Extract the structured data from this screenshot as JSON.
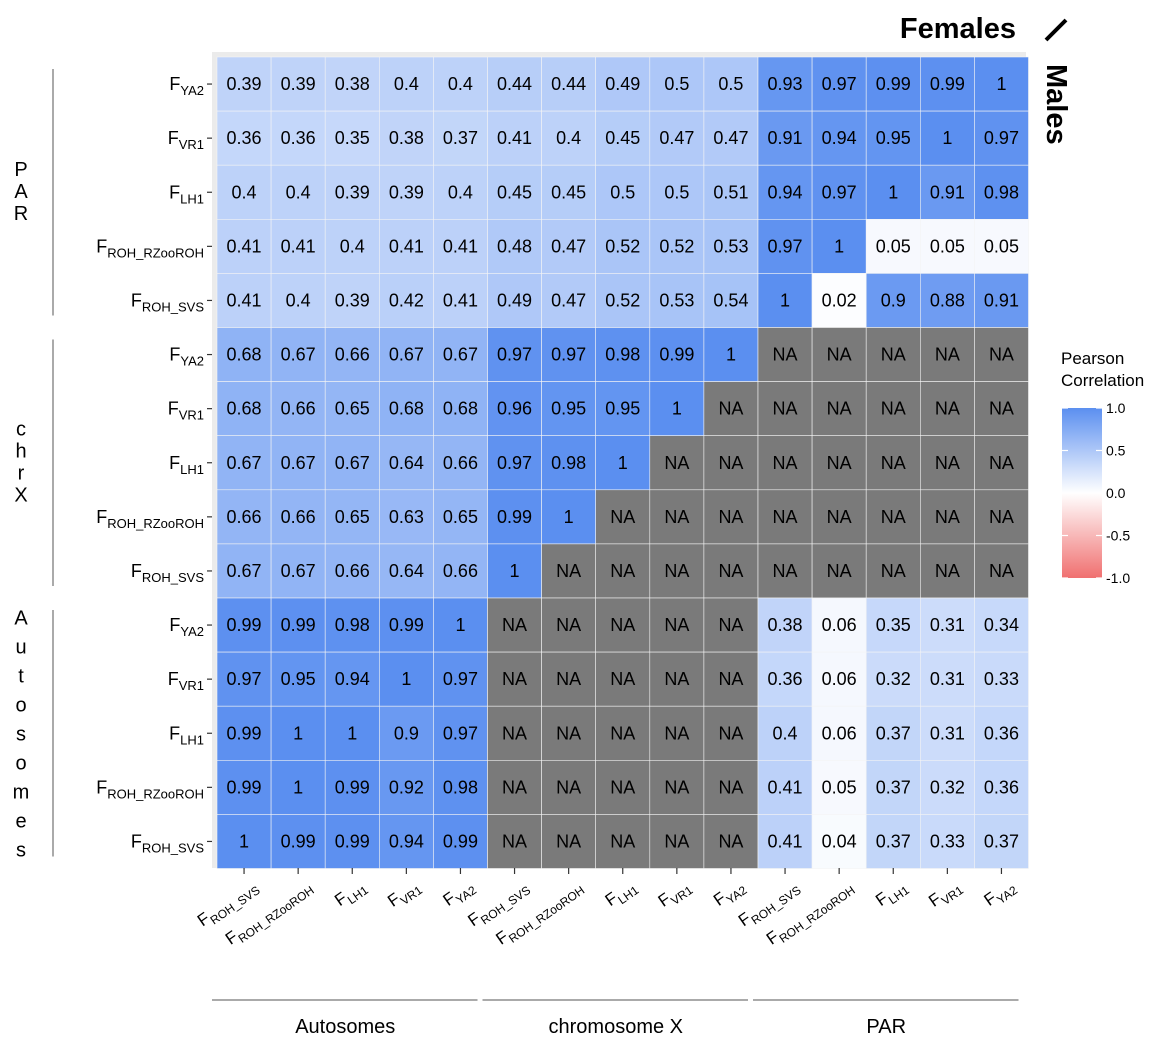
{
  "chart_data": {
    "type": "heatmap",
    "corner_label_top": "Females",
    "corner_label_right": "Males",
    "legend": {
      "title_line1": "Pearson",
      "title_line2": "Correlation",
      "ticks": [
        "1.0",
        "0.5",
        "0.0",
        "-0.5",
        "-1.0"
      ],
      "tick_values": [
        1.0,
        0.5,
        0.0,
        -0.5,
        -1.0
      ],
      "colors": {
        "high": "#5b8ff0",
        "mid": "#ffffff",
        "low": "#f07070",
        "na": "#7a7a7a"
      }
    },
    "x_groups": [
      "Autosomes",
      "chromosome X",
      "PAR"
    ],
    "y_groups": [
      "PAR",
      "chrX",
      "Autosomes"
    ],
    "x_labels": [
      {
        "main": "F",
        "sub": "ROH_SVS"
      },
      {
        "main": "F",
        "sub": "ROH_RZooROH"
      },
      {
        "main": "F",
        "sub": "LH1"
      },
      {
        "main": "F",
        "sub": "VR1"
      },
      {
        "main": "F",
        "sub": "YA2"
      },
      {
        "main": "F",
        "sub": "ROH_SVS"
      },
      {
        "main": "F",
        "sub": "ROH_RZooROH"
      },
      {
        "main": "F",
        "sub": "LH1"
      },
      {
        "main": "F",
        "sub": "VR1"
      },
      {
        "main": "F",
        "sub": "YA2"
      },
      {
        "main": "F",
        "sub": "ROH_SVS"
      },
      {
        "main": "F",
        "sub": "ROH_RZooROH"
      },
      {
        "main": "F",
        "sub": "LH1"
      },
      {
        "main": "F",
        "sub": "VR1"
      },
      {
        "main": "F",
        "sub": "YA2"
      }
    ],
    "y_labels": [
      {
        "main": "F",
        "sub": "YA2"
      },
      {
        "main": "F",
        "sub": "VR1"
      },
      {
        "main": "F",
        "sub": "LH1"
      },
      {
        "main": "F",
        "sub": "ROH_RZooROH"
      },
      {
        "main": "F",
        "sub": "ROH_SVS"
      },
      {
        "main": "F",
        "sub": "YA2"
      },
      {
        "main": "F",
        "sub": "VR1"
      },
      {
        "main": "F",
        "sub": "LH1"
      },
      {
        "main": "F",
        "sub": "ROH_RZooROH"
      },
      {
        "main": "F",
        "sub": "ROH_SVS"
      },
      {
        "main": "F",
        "sub": "YA2"
      },
      {
        "main": "F",
        "sub": "VR1"
      },
      {
        "main": "F",
        "sub": "LH1"
      },
      {
        "main": "F",
        "sub": "ROH_RZooROH"
      },
      {
        "main": "F",
        "sub": "ROH_SVS"
      }
    ],
    "values": [
      [
        "0.39",
        "0.39",
        "0.38",
        "0.4",
        "0.4",
        "0.44",
        "0.44",
        "0.49",
        "0.5",
        "0.5",
        "0.93",
        "0.97",
        "0.99",
        "0.99",
        "1"
      ],
      [
        "0.36",
        "0.36",
        "0.35",
        "0.38",
        "0.37",
        "0.41",
        "0.4",
        "0.45",
        "0.47",
        "0.47",
        "0.91",
        "0.94",
        "0.95",
        "1",
        "0.97"
      ],
      [
        "0.4",
        "0.4",
        "0.39",
        "0.39",
        "0.4",
        "0.45",
        "0.45",
        "0.5",
        "0.5",
        "0.51",
        "0.94",
        "0.97",
        "1",
        "0.91",
        "0.98"
      ],
      [
        "0.41",
        "0.41",
        "0.4",
        "0.41",
        "0.41",
        "0.48",
        "0.47",
        "0.52",
        "0.52",
        "0.53",
        "0.97",
        "1",
        "0.05",
        "0.05",
        "0.05"
      ],
      [
        "0.41",
        "0.4",
        "0.39",
        "0.42",
        "0.41",
        "0.49",
        "0.47",
        "0.52",
        "0.53",
        "0.54",
        "1",
        "0.02",
        "0.9",
        "0.88",
        "0.91"
      ],
      [
        "0.68",
        "0.67",
        "0.66",
        "0.67",
        "0.67",
        "0.97",
        "0.97",
        "0.98",
        "0.99",
        "1",
        "NA",
        "NA",
        "NA",
        "NA",
        "NA"
      ],
      [
        "0.68",
        "0.66",
        "0.65",
        "0.68",
        "0.68",
        "0.96",
        "0.95",
        "0.95",
        "1",
        "NA",
        "NA",
        "NA",
        "NA",
        "NA",
        "NA"
      ],
      [
        "0.67",
        "0.67",
        "0.67",
        "0.64",
        "0.66",
        "0.97",
        "0.98",
        "1",
        "NA",
        "NA",
        "NA",
        "NA",
        "NA",
        "NA",
        "NA"
      ],
      [
        "0.66",
        "0.66",
        "0.65",
        "0.63",
        "0.65",
        "0.99",
        "1",
        "NA",
        "NA",
        "NA",
        "NA",
        "NA",
        "NA",
        "NA",
        "NA"
      ],
      [
        "0.67",
        "0.67",
        "0.66",
        "0.64",
        "0.66",
        "1",
        "NA",
        "NA",
        "NA",
        "NA",
        "NA",
        "NA",
        "NA",
        "NA",
        "NA"
      ],
      [
        "0.99",
        "0.99",
        "0.98",
        "0.99",
        "1",
        "NA",
        "NA",
        "NA",
        "NA",
        "NA",
        "0.38",
        "0.06",
        "0.35",
        "0.31",
        "0.34"
      ],
      [
        "0.97",
        "0.95",
        "0.94",
        "1",
        "0.97",
        "NA",
        "NA",
        "NA",
        "NA",
        "NA",
        "0.36",
        "0.06",
        "0.32",
        "0.31",
        "0.33"
      ],
      [
        "0.99",
        "1",
        "1",
        "0.9",
        "0.97",
        "NA",
        "NA",
        "NA",
        "NA",
        "NA",
        "0.4",
        "0.06",
        "0.37",
        "0.31",
        "0.36"
      ],
      [
        "0.99",
        "1",
        "0.99",
        "0.92",
        "0.98",
        "NA",
        "NA",
        "NA",
        "NA",
        "NA",
        "0.41",
        "0.05",
        "0.37",
        "0.32",
        "0.36"
      ],
      [
        "1",
        "0.99",
        "0.99",
        "0.94",
        "0.99",
        "NA",
        "NA",
        "NA",
        "NA",
        "NA",
        "0.41",
        "0.04",
        "0.37",
        "0.33",
        "0.37"
      ]
    ]
  }
}
